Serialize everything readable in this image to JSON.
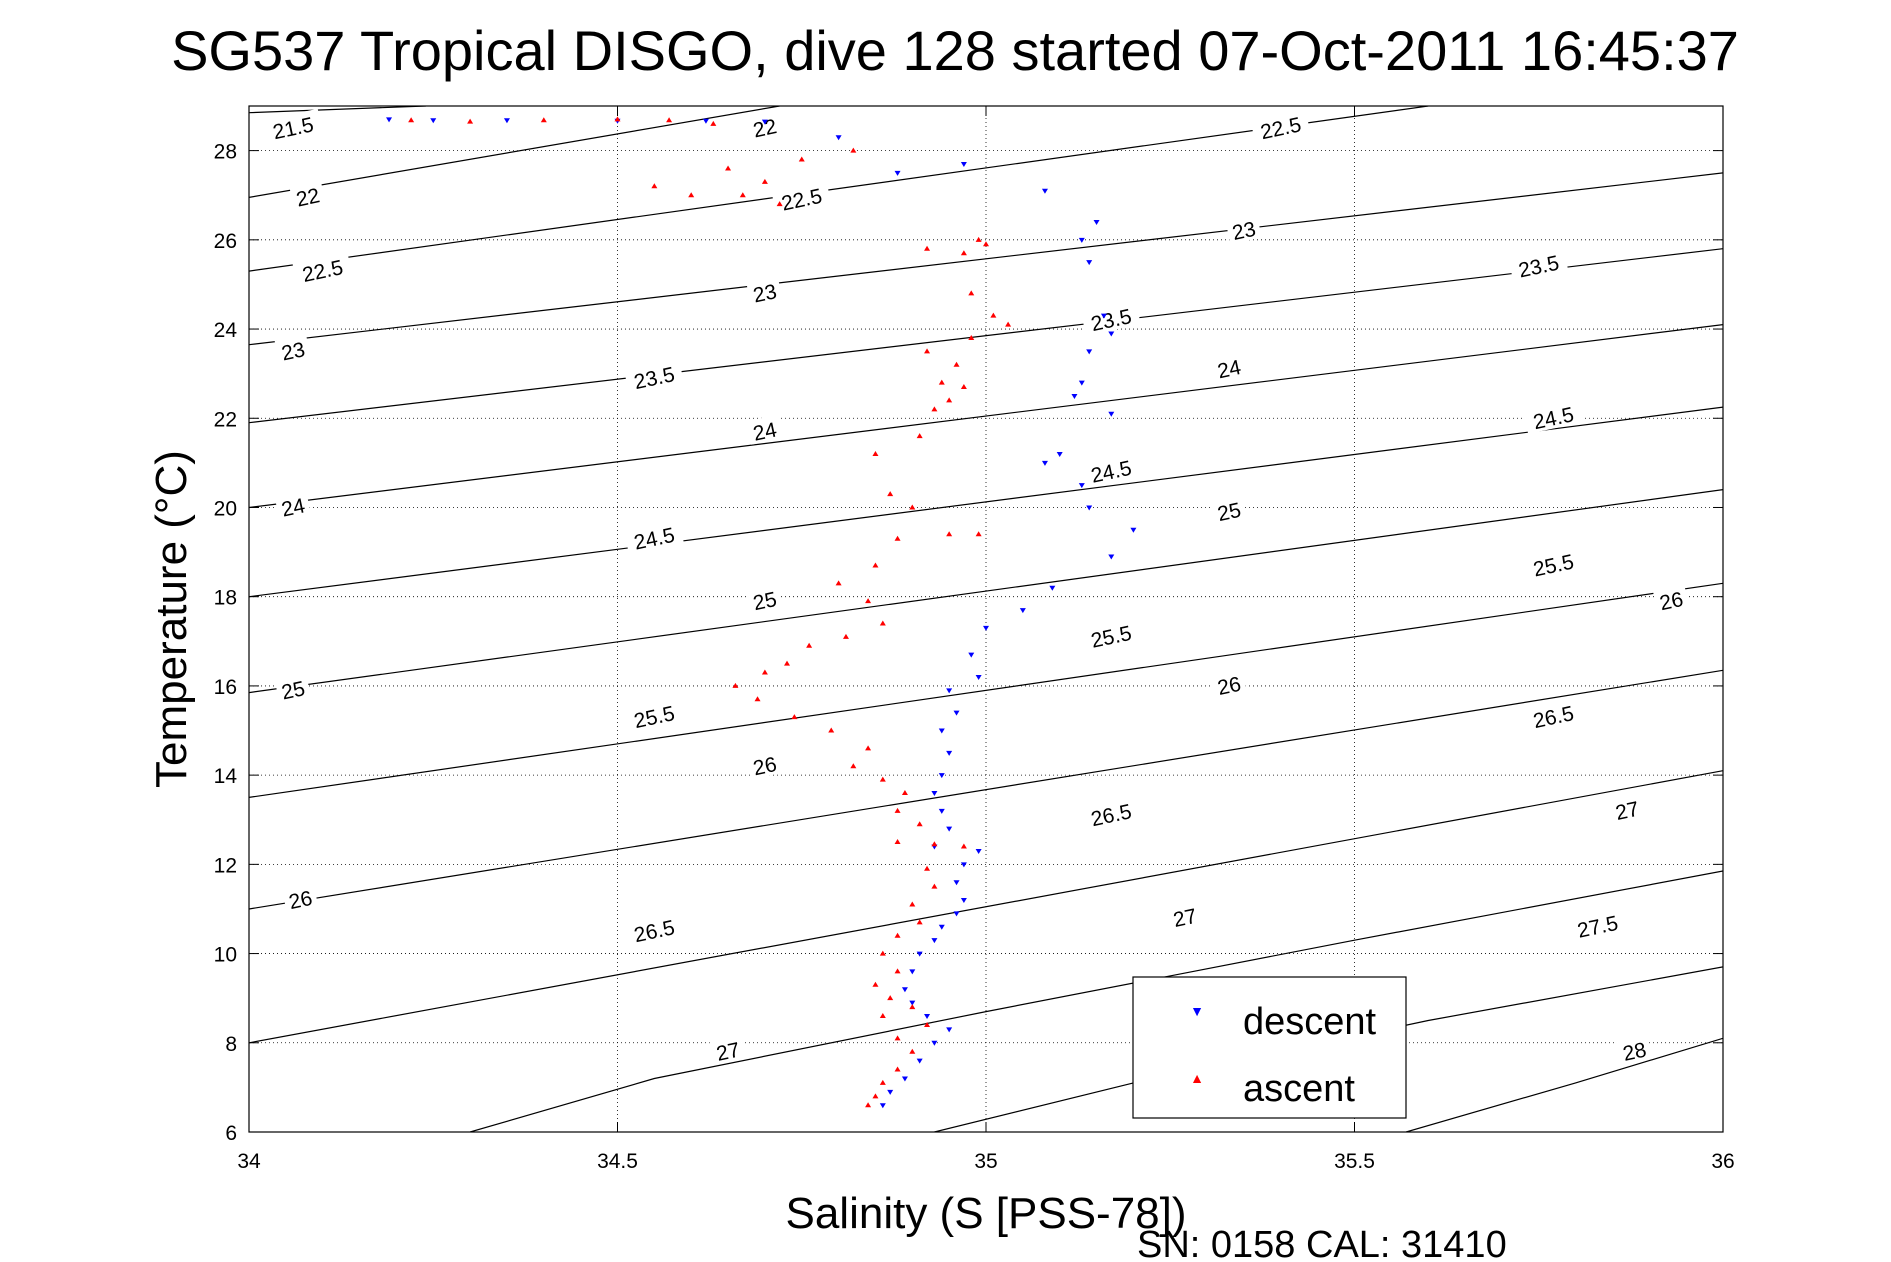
{
  "chart_data": {
    "type": "scatter",
    "title": "SG537 Tropical DISGO, dive 128 started 07-Oct-2011 16:45:37",
    "xlabel": "Salinity (S [PSS-78])",
    "ylabel": "Temperature (°C)",
    "footer": "SN: 0158  CAL: 31410",
    "xlim": [
      34,
      36
    ],
    "ylim": [
      6,
      29
    ],
    "xticks": [
      "34",
      "34.5",
      "35",
      "35.5",
      "36"
    ],
    "yticks": [
      "6",
      "8",
      "10",
      "12",
      "14",
      "16",
      "18",
      "20",
      "22",
      "24",
      "26",
      "28"
    ],
    "grid": true,
    "legend_position": "bottom-right",
    "colors": {
      "descent": "#0000ff",
      "ascent": "#ff0000",
      "contour": "#000000"
    },
    "density_contours": [
      {
        "label": "21.5",
        "points": [
          [
            34.0,
            28.85
          ],
          [
            34.24,
            29.0
          ]
        ],
        "label_at": [
          34.06,
          28.5
        ]
      },
      {
        "label": "22",
        "points": [
          [
            34.0,
            26.95
          ],
          [
            34.72,
            29.0
          ]
        ],
        "label_at": [
          34.08,
          26.95
        ],
        "label_at2": [
          34.7,
          28.5
        ]
      },
      {
        "label": "22.5",
        "points": [
          [
            34.0,
            25.3
          ],
          [
            35.6,
            29.0
          ]
        ],
        "label_at": [
          34.1,
          25.3
        ],
        "label_at2": [
          34.75,
          26.9
        ],
        "label_at3": [
          35.4,
          28.5
        ]
      },
      {
        "label": "23",
        "points": [
          [
            34.0,
            23.65
          ],
          [
            36.0,
            27.5
          ]
        ],
        "label_at": [
          34.06,
          23.5
        ],
        "label_at2": [
          34.7,
          24.8
        ],
        "label_at3": [
          35.35,
          26.2
        ]
      },
      {
        "label": "23.5",
        "points": [
          [
            34.0,
            21.9
          ],
          [
            36.0,
            25.8
          ]
        ],
        "label_at": [
          34.55,
          22.9
        ],
        "label_at2": [
          35.17,
          24.2
        ],
        "label_at3": [
          35.75,
          25.4
        ]
      },
      {
        "label": "24",
        "points": [
          [
            34.0,
            20.0
          ],
          [
            36.0,
            24.1
          ]
        ],
        "label_at": [
          34.06,
          20.0
        ],
        "label_at2": [
          34.7,
          21.7
        ],
        "label_at3": [
          35.33,
          23.1
        ]
      },
      {
        "label": "24.5",
        "points": [
          [
            34.0,
            18.0
          ],
          [
            36.0,
            22.25
          ]
        ],
        "label_at": [
          34.55,
          19.3
        ],
        "label_at2": [
          35.17,
          20.8
        ],
        "label_at3": [
          35.77,
          22.0
        ]
      },
      {
        "label": "25",
        "points": [
          [
            34.0,
            15.85
          ],
          [
            36.0,
            20.4
          ]
        ],
        "label_at": [
          34.06,
          15.9
        ],
        "label_at2": [
          34.7,
          17.9
        ],
        "label_at3": [
          35.33,
          19.9
        ]
      },
      {
        "label": "25.5",
        "points": [
          [
            34.0,
            13.5
          ],
          [
            36.0,
            18.3
          ]
        ],
        "label_at": [
          34.55,
          15.3
        ],
        "label_at2": [
          35.17,
          17.1
        ],
        "label_at3": [
          35.77,
          18.7
        ]
      },
      {
        "label": "26",
        "points": [
          [
            34.0,
            11.0
          ],
          [
            36.0,
            16.35
          ]
        ],
        "label_at": [
          34.07,
          11.2
        ],
        "label_at2": [
          34.7,
          14.2
        ],
        "label_at3": [
          35.33,
          16.0
        ],
        "label_at4": [
          35.93,
          17.9
        ]
      },
      {
        "label": "26.5",
        "points": [
          [
            34.0,
            8.0
          ],
          [
            36.0,
            14.1
          ]
        ],
        "label_at": [
          34.55,
          10.5
        ],
        "label_at2": [
          35.17,
          13.1
        ],
        "label_at3": [
          35.77,
          15.3
        ]
      },
      {
        "label": "27",
        "points": [
          [
            34.3,
            6.0
          ],
          [
            34.55,
            7.2
          ],
          [
            35.0,
            8.7
          ],
          [
            35.5,
            10.3
          ],
          [
            36.0,
            11.85
          ]
        ],
        "label_at": [
          34.65,
          7.8
        ],
        "label_at2": [
          35.27,
          10.8
        ],
        "label_at3": [
          35.87,
          13.2
        ]
      },
      {
        "label": "27.5",
        "points": [
          [
            34.93,
            6.0
          ],
          [
            35.2,
            7.1
          ],
          [
            35.6,
            8.5
          ],
          [
            36.0,
            9.7
          ]
        ],
        "label_at": [
          35.83,
          10.6
        ]
      },
      {
        "label": "28",
        "points": [
          [
            35.57,
            6.0
          ],
          [
            35.8,
            7.1
          ],
          [
            36.0,
            8.1
          ]
        ],
        "label_at": [
          35.88,
          7.8
        ]
      }
    ],
    "series": [
      {
        "name": "descent",
        "marker": "triangle-down",
        "points": [
          [
            34.19,
            28.7
          ],
          [
            34.25,
            28.68
          ],
          [
            34.35,
            28.68
          ],
          [
            34.5,
            28.67
          ],
          [
            34.62,
            28.67
          ],
          [
            34.7,
            28.65
          ],
          [
            34.8,
            28.3
          ],
          [
            34.88,
            27.5
          ],
          [
            34.97,
            27.7
          ],
          [
            35.08,
            27.1
          ],
          [
            35.15,
            26.4
          ],
          [
            35.13,
            26.0
          ],
          [
            35.14,
            25.5
          ],
          [
            35.16,
            24.3
          ],
          [
            35.17,
            23.9
          ],
          [
            35.14,
            23.5
          ],
          [
            35.13,
            22.8
          ],
          [
            35.12,
            22.5
          ],
          [
            35.17,
            22.1
          ],
          [
            35.1,
            21.2
          ],
          [
            35.08,
            21.0
          ],
          [
            35.13,
            20.5
          ],
          [
            35.14,
            20.0
          ],
          [
            35.2,
            19.5
          ],
          [
            35.17,
            18.9
          ],
          [
            35.09,
            18.2
          ],
          [
            35.05,
            17.7
          ],
          [
            35.0,
            17.3
          ],
          [
            34.98,
            16.7
          ],
          [
            34.99,
            16.2
          ],
          [
            34.95,
            15.9
          ],
          [
            34.96,
            15.4
          ],
          [
            34.94,
            15.0
          ],
          [
            34.95,
            14.5
          ],
          [
            34.94,
            14.0
          ],
          [
            34.93,
            13.6
          ],
          [
            34.94,
            13.2
          ],
          [
            34.95,
            12.8
          ],
          [
            34.93,
            12.4
          ],
          [
            34.99,
            12.3
          ],
          [
            34.97,
            12.0
          ],
          [
            34.96,
            11.6
          ],
          [
            34.97,
            11.2
          ],
          [
            34.96,
            10.9
          ],
          [
            34.94,
            10.6
          ],
          [
            34.93,
            10.3
          ],
          [
            34.91,
            10.0
          ],
          [
            34.9,
            9.6
          ],
          [
            34.89,
            9.2
          ],
          [
            34.9,
            8.9
          ],
          [
            34.92,
            8.6
          ],
          [
            34.95,
            8.3
          ],
          [
            34.93,
            8.0
          ],
          [
            34.91,
            7.6
          ],
          [
            34.89,
            7.2
          ],
          [
            34.87,
            6.9
          ],
          [
            34.86,
            6.6
          ]
        ]
      },
      {
        "name": "ascent",
        "marker": "triangle-up",
        "points": [
          [
            34.22,
            28.68
          ],
          [
            34.3,
            28.65
          ],
          [
            34.4,
            28.68
          ],
          [
            34.5,
            28.7
          ],
          [
            34.57,
            28.68
          ],
          [
            34.63,
            28.6
          ],
          [
            34.55,
            27.2
          ],
          [
            34.6,
            27.0
          ],
          [
            34.65,
            27.6
          ],
          [
            34.7,
            27.3
          ],
          [
            34.75,
            27.8
          ],
          [
            34.82,
            28.0
          ],
          [
            34.72,
            26.8
          ],
          [
            34.67,
            27.0
          ],
          [
            34.92,
            25.8
          ],
          [
            34.97,
            25.7
          ],
          [
            34.99,
            26.0
          ],
          [
            35.0,
            25.9
          ],
          [
            34.98,
            24.8
          ],
          [
            35.01,
            24.3
          ],
          [
            35.03,
            24.1
          ],
          [
            34.98,
            23.8
          ],
          [
            34.92,
            23.5
          ],
          [
            34.96,
            23.2
          ],
          [
            34.94,
            22.8
          ],
          [
            34.97,
            22.7
          ],
          [
            34.93,
            22.2
          ],
          [
            34.95,
            22.4
          ],
          [
            34.91,
            21.6
          ],
          [
            34.85,
            21.2
          ],
          [
            34.87,
            20.3
          ],
          [
            34.9,
            20.0
          ],
          [
            34.88,
            19.3
          ],
          [
            34.95,
            19.4
          ],
          [
            34.99,
            19.4
          ],
          [
            34.85,
            18.7
          ],
          [
            34.8,
            18.3
          ],
          [
            34.84,
            17.9
          ],
          [
            34.86,
            17.4
          ],
          [
            34.81,
            17.1
          ],
          [
            34.76,
            16.9
          ],
          [
            34.73,
            16.5
          ],
          [
            34.7,
            16.3
          ],
          [
            34.66,
            16.0
          ],
          [
            34.69,
            15.7
          ],
          [
            34.74,
            15.3
          ],
          [
            34.79,
            15.0
          ],
          [
            34.84,
            14.6
          ],
          [
            34.82,
            14.2
          ],
          [
            34.86,
            13.9
          ],
          [
            34.89,
            13.6
          ],
          [
            34.88,
            13.2
          ],
          [
            34.91,
            12.9
          ],
          [
            34.88,
            12.5
          ],
          [
            34.93,
            12.45
          ],
          [
            34.97,
            12.4
          ],
          [
            34.92,
            11.9
          ],
          [
            34.93,
            11.5
          ],
          [
            34.9,
            11.1
          ],
          [
            34.91,
            10.7
          ],
          [
            34.88,
            10.4
          ],
          [
            34.86,
            10.0
          ],
          [
            34.88,
            9.6
          ],
          [
            34.85,
            9.3
          ],
          [
            34.87,
            9.0
          ],
          [
            34.86,
            8.6
          ],
          [
            34.9,
            8.8
          ],
          [
            34.92,
            8.4
          ],
          [
            34.88,
            8.1
          ],
          [
            34.9,
            7.8
          ],
          [
            34.88,
            7.4
          ],
          [
            34.86,
            7.1
          ],
          [
            34.85,
            6.8
          ],
          [
            34.84,
            6.6
          ]
        ]
      }
    ]
  }
}
